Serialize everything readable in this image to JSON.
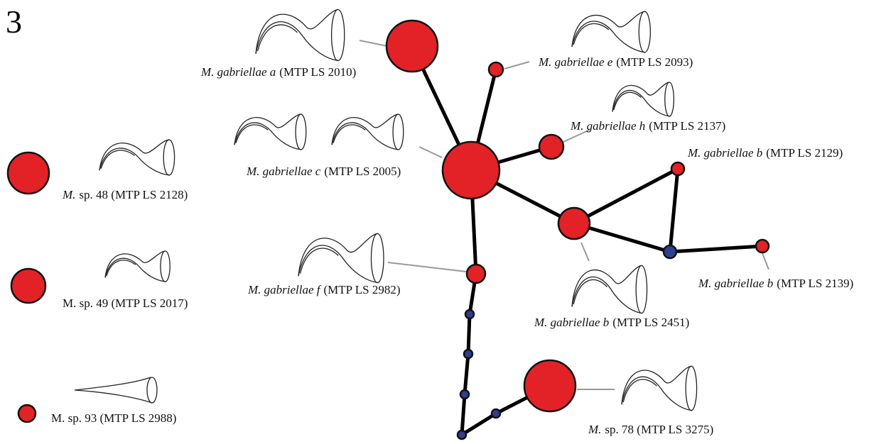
{
  "panel_label": "3",
  "labels": [
    {
      "italic": "M. gabriellae a",
      "plain": "(MTP LS 2010)"
    },
    {
      "italic": "M. gabriellae e",
      "plain": "(MTP LS 2093)"
    },
    {
      "italic": "M. gabriellae h",
      "plain": "(MTP LS 2137)"
    },
    {
      "italic": "M. gabriellae c",
      "plain": "(MTP LS 2005)"
    },
    {
      "italic": "M. gabriellae b",
      "plain": "(MTP LS 2129)"
    },
    {
      "italic": "M. gabriellae f",
      "plain": "(MTP LS 2982)"
    },
    {
      "italic": "M. gabriellae b",
      "plain": "(MTP LS 2139)"
    },
    {
      "italic": "M. gabriellae b",
      "plain": "(MTP LS 2451)"
    },
    {
      "italic": "M.",
      "plain": "sp. 78 (MTP LS 3275)"
    },
    {
      "italic": "M.",
      "plain": "sp. 48 (MTP LS 2128)"
    },
    {
      "plain": "M. sp. 49 (MTP LS 2017)"
    },
    {
      "plain": "M. sp. 93 (MTP LS 2988)"
    }
  ]
}
